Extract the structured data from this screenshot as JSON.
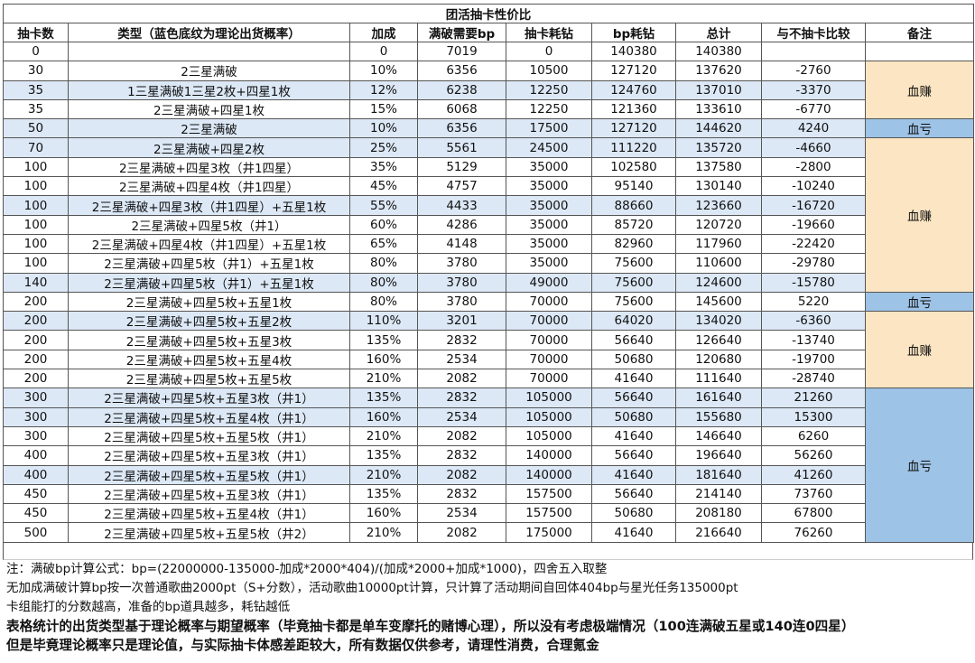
{
  "table": {
    "title": "团活抽卡性价比",
    "columns": [
      "抽卡数",
      "类型（蓝色底纹为理论出货概率）",
      "加成",
      "满破需要bp",
      "抽卡耗钻",
      "bp耗钻",
      "总计",
      "与不抽卡比较",
      "备注"
    ],
    "rows": [
      {
        "cells": [
          0,
          null,
          0,
          7019,
          0,
          140380,
          140380,
          null
        ]
      },
      {
        "cells": [
          30,
          "2三星满破",
          "10%",
          6356,
          10500,
          127120,
          137620,
          -2760
        ],
        "note": "血赚",
        "note_color": "#fce5c2"
      },
      {
        "cells": [
          35,
          "1三星满破1三星2枚+四星1枚",
          "12%",
          6238,
          12250,
          124760,
          137010,
          -3370
        ],
        "highlight": true,
        "note": "血赚",
        "note_color": "#fce5c2"
      },
      {
        "cells": [
          35,
          "2三星满破+四星1枚",
          "15%",
          6068,
          12250,
          121360,
          133610,
          -6770
        ],
        "note": "血赚",
        "note_color": "#fce5c2"
      },
      {
        "cells": [
          50,
          "2三星满破",
          "10%",
          6356,
          17500,
          127120,
          144620,
          4240
        ],
        "highlight": true,
        "note": "血亏",
        "note_color": "#9dc3e6"
      },
      {
        "cells": [
          70,
          "2三星满破+四星2枚",
          "25%",
          5561,
          24500,
          111220,
          135720,
          -4660
        ],
        "highlight": true,
        "note": "血赚",
        "note_color": "#fce5c2"
      },
      {
        "cells": [
          100,
          "2三星满破+四星3枚（井1四星）",
          "35%",
          5129,
          35000,
          102580,
          137580,
          -2800
        ],
        "note": "血赚",
        "note_color": "#fce5c2"
      },
      {
        "cells": [
          100,
          "2三星满破+四星4枚（井1四星）",
          "45%",
          4757,
          35000,
          95140,
          130140,
          -10240
        ],
        "note": "血赚",
        "note_color": "#fce5c2"
      },
      {
        "cells": [
          100,
          "2三星满破+四星3枚（井1四星）+五星1枚",
          "55%",
          4433,
          35000,
          88660,
          123660,
          -16720
        ],
        "highlight": true,
        "note": "血赚",
        "note_color": "#fce5c2"
      },
      {
        "cells": [
          100,
          "2三星满破+四星5枚（井1）",
          "60%",
          4286,
          35000,
          85720,
          120720,
          -19660
        ],
        "note": "血赚",
        "note_color": "#fce5c2"
      },
      {
        "cells": [
          100,
          "2三星满破+四星4枚（井1四星）+五星1枚",
          "65%",
          4148,
          35000,
          82960,
          117960,
          -22420
        ],
        "note": "血赚",
        "note_color": "#fce5c2"
      },
      {
        "cells": [
          100,
          "2三星满破+四星5枚（井1）+五星1枚",
          "80%",
          3780,
          35000,
          75600,
          110600,
          -29780
        ],
        "note": "血赚",
        "note_color": "#fce5c2"
      },
      {
        "cells": [
          140,
          "2三星满破+四星5枚（井1）+五星1枚",
          "80%",
          3780,
          49000,
          75600,
          124600,
          -15780
        ],
        "highlight": true,
        "note": "血赚",
        "note_color": "#fce5c2"
      },
      {
        "cells": [
          200,
          "2三星满破+四星5枚+五星1枚",
          "80%",
          3780,
          70000,
          75600,
          145600,
          5220
        ],
        "note": "血亏",
        "note_color": "#9dc3e6"
      },
      {
        "cells": [
          200,
          "2三星满破+四星5枚+五星2枚",
          "110%",
          3201,
          70000,
          64020,
          134020,
          -6360
        ],
        "highlight": true,
        "note": "血赚",
        "note_color": "#fce5c2"
      },
      {
        "cells": [
          200,
          "2三星满破+四星5枚+五星3枚",
          "135%",
          2832,
          70000,
          56640,
          126640,
          -13740
        ],
        "note": "血赚",
        "note_color": "#fce5c2"
      },
      {
        "cells": [
          200,
          "2三星满破+四星5枚+五星4枚",
          "160%",
          2534,
          70000,
          50680,
          120680,
          -19700
        ],
        "note": "血赚",
        "note_color": "#fce5c2"
      },
      {
        "cells": [
          200,
          "2三星满破+四星5枚+五星5枚",
          "210%",
          2082,
          70000,
          41640,
          111640,
          -28740
        ],
        "note": "血赚",
        "note_color": "#fce5c2"
      },
      {
        "cells": [
          300,
          "2三星满破+四星5枚+五星3枚（井1）",
          "135%",
          2832,
          105000,
          56640,
          161640,
          21260
        ],
        "highlight": true,
        "note": "血亏",
        "note_color": "#9dc3e6"
      },
      {
        "cells": [
          300,
          "2三星满破+四星5枚+五星4枚（井1）",
          "160%",
          2534,
          105000,
          50680,
          155680,
          15300
        ],
        "highlight": true,
        "note": "血亏",
        "note_color": "#9dc3e6"
      },
      {
        "cells": [
          300,
          "2三星满破+四星5枚+五星5枚（井1）",
          "210%",
          2082,
          105000,
          41640,
          146640,
          6260
        ],
        "note": "血亏",
        "note_color": "#9dc3e6"
      },
      {
        "cells": [
          400,
          "2三星满破+四星5枚+五星3枚（井1）",
          "135%",
          2832,
          140000,
          56640,
          196640,
          56260
        ],
        "note": "血亏",
        "note_color": "#9dc3e6"
      },
      {
        "cells": [
          400,
          "2三星满破+四星5枚+五星5枚（井1）",
          "210%",
          2082,
          140000,
          41640,
          181640,
          41260
        ],
        "highlight": true,
        "note": "血亏",
        "note_color": "#9dc3e6"
      },
      {
        "cells": [
          450,
          "2三星满破+四星5枚+五星3枚（井1）",
          "135%",
          2832,
          157500,
          56640,
          214140,
          73760
        ],
        "note": "血亏",
        "note_color": "#9dc3e6"
      },
      {
        "cells": [
          450,
          "2三星满破+四星5枚+五星4枚（井1）",
          "160%",
          2534,
          157500,
          50680,
          208180,
          67800
        ],
        "note": "血亏",
        "note_color": "#9dc3e6"
      },
      {
        "cells": [
          500,
          "2三星满破+四星5枚+五星5枚（井2）",
          "210%",
          2082,
          175000,
          41640,
          216640,
          76260
        ],
        "note": "血亏",
        "note_color": "#9dc3e6"
      }
    ],
    "footnotes": [
      "注：满破bp计算公式：bp=(22000000-135000-加成*2000*404)/(加成*2000+加成*1000)，四舍五入取整",
      "无加成满破计算bp按一次普通歌曲2000pt（S+分数），活动歌曲10000pt计算，只计算了活动期间自回体404bp与星光任务135000pt",
      "卡组能打的分数越高，准备的bp道具越多，耗钻越低",
      "表格统计的出货类型基于理论概率与期望概率（毕竟抽卡都是单车变摩托的赌博心理），所以没有考虑极端情况（100连满破五星或140连0四星）",
      "但是毕竟理论概率只是理论值，与实际抽卡体感差距较大，所有数据仅供参考，请理性消费，合理氪金"
    ]
  }
}
